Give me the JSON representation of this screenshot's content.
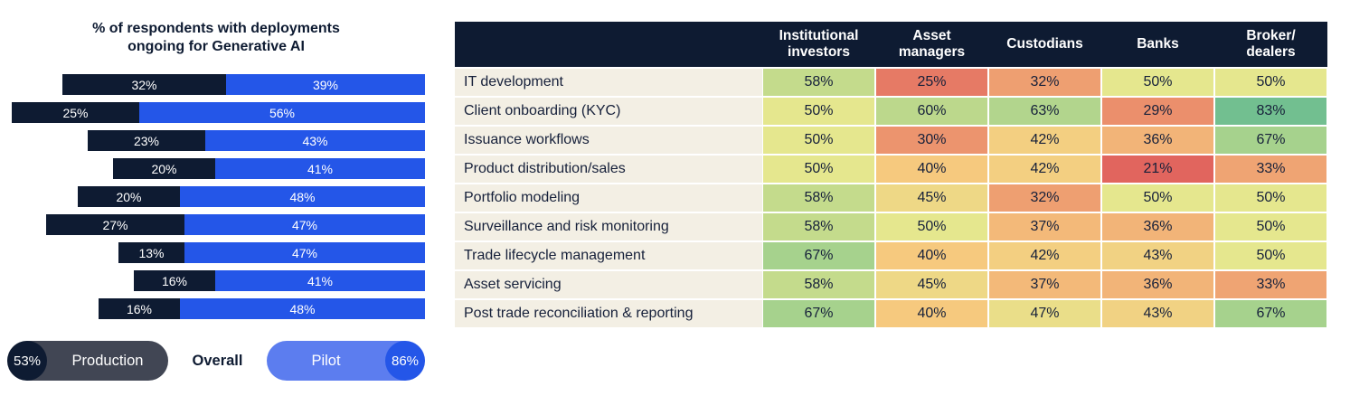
{
  "left_chart": {
    "title": "% of respondents with deployments\nongoing for Generative AI",
    "bars": [
      {
        "production": 32,
        "pilot": 39
      },
      {
        "production": 25,
        "pilot": 56
      },
      {
        "production": 23,
        "pilot": 43
      },
      {
        "production": 20,
        "pilot": 41
      },
      {
        "production": 20,
        "pilot": 48
      },
      {
        "production": 27,
        "pilot": 47
      },
      {
        "production": 13,
        "pilot": 47
      },
      {
        "production": 16,
        "pilot": 41
      },
      {
        "production": 16,
        "pilot": 48
      }
    ],
    "legend": {
      "production_value": "53%",
      "production_label": "Production",
      "overall_label": "Overall",
      "pilot_label": "Pilot",
      "pilot_value": "86%"
    },
    "colors": {
      "production": "#0e1b32",
      "pilot": "#2456e8",
      "production_pill": "#414654",
      "pilot_pill": "#5c7def"
    }
  },
  "table": {
    "columns": [
      "Institutional\ninvestors",
      "Asset\nmanagers",
      "Custodians",
      "Banks",
      "Broker/\ndealers"
    ],
    "rows": [
      {
        "label": "IT development",
        "values": [
          58,
          25,
          32,
          50,
          50
        ]
      },
      {
        "label": "Client onboarding (KYC)",
        "values": [
          50,
          60,
          63,
          29,
          83
        ]
      },
      {
        "label": "Issuance workflows",
        "values": [
          50,
          30,
          42,
          36,
          67
        ]
      },
      {
        "label": "Product distribution/sales",
        "values": [
          50,
          40,
          42,
          21,
          33
        ]
      },
      {
        "label": "Portfolio modeling",
        "values": [
          58,
          45,
          32,
          50,
          50
        ]
      },
      {
        "label": "Surveillance and risk monitoring",
        "values": [
          58,
          50,
          37,
          36,
          50
        ]
      },
      {
        "label": "Trade lifecycle management",
        "values": [
          67,
          40,
          42,
          43,
          50
        ]
      },
      {
        "label": "Asset servicing",
        "values": [
          58,
          45,
          37,
          36,
          33
        ]
      },
      {
        "label": "Post trade reconciliation & reporting",
        "values": [
          67,
          40,
          47,
          43,
          67
        ]
      }
    ],
    "colors": {
      "header_bg": "#0e1b32",
      "header_text": "#ffffff",
      "label_bg": "#f3efe4",
      "text": "#16203a"
    },
    "heatmap_stops": [
      [
        20,
        "#e0605c"
      ],
      [
        30,
        "#ec946e"
      ],
      [
        40,
        "#f6c97e"
      ],
      [
        50,
        "#e5e78e"
      ],
      [
        60,
        "#bcd88c"
      ],
      [
        70,
        "#9ccf8e"
      ],
      [
        85,
        "#6cbd90"
      ]
    ]
  },
  "chart_data": [
    {
      "type": "bar",
      "orientation": "horizontal-stacked",
      "title": "% of respondents with deployments ongoing for Generative AI",
      "categories": [
        "IT development",
        "Client onboarding (KYC)",
        "Issuance workflows",
        "Product distribution/sales",
        "Portfolio modeling",
        "Surveillance and risk monitoring",
        "Trade lifecycle management",
        "Asset servicing",
        "Post trade reconciliation & reporting"
      ],
      "series": [
        {
          "name": "Production",
          "values": [
            32,
            25,
            23,
            20,
            20,
            27,
            13,
            16,
            16
          ]
        },
        {
          "name": "Pilot",
          "values": [
            39,
            56,
            43,
            41,
            48,
            47,
            47,
            41,
            48
          ]
        }
      ],
      "overall": {
        "production": 53,
        "pilot": 86
      },
      "unit": "%",
      "legend_position": "bottom",
      "bars_right_aligned": true
    },
    {
      "type": "heatmap",
      "columns": [
        "Institutional investors",
        "Asset managers",
        "Custodians",
        "Banks",
        "Broker/dealers"
      ],
      "rows": [
        "IT development",
        "Client onboarding (KYC)",
        "Issuance workflows",
        "Product distribution/sales",
        "Portfolio modeling",
        "Surveillance and risk monitoring",
        "Trade lifecycle management",
        "Asset servicing",
        "Post trade reconciliation & reporting"
      ],
      "values": [
        [
          58,
          25,
          32,
          50,
          50
        ],
        [
          50,
          60,
          63,
          29,
          83
        ],
        [
          50,
          30,
          42,
          36,
          67
        ],
        [
          50,
          40,
          42,
          21,
          33
        ],
        [
          58,
          45,
          32,
          50,
          50
        ],
        [
          58,
          50,
          37,
          36,
          50
        ],
        [
          67,
          40,
          42,
          43,
          50
        ],
        [
          58,
          45,
          37,
          36,
          33
        ],
        [
          67,
          40,
          47,
          43,
          67
        ]
      ],
      "unit": "%",
      "color_scale": "red (low) → yellow → green (high)"
    }
  ]
}
